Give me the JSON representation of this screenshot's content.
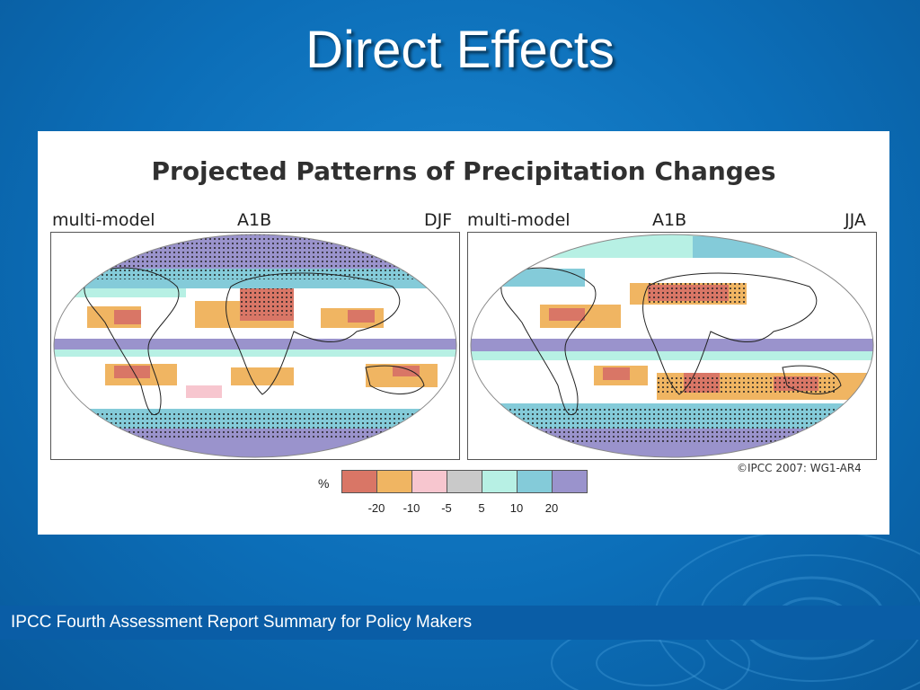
{
  "slide": {
    "title": "Direct Effects",
    "footer": "IPCC Fourth Assessment Report Summary for Policy Makers"
  },
  "figure": {
    "title": "Projected Patterns of Precipitation Changes",
    "copyright": "©IPCC  2007: WG1-AR4",
    "panels": [
      {
        "label_left": "multi-model",
        "label_mid": "A1B",
        "label_right": "DJF"
      },
      {
        "label_left": "multi-model",
        "label_mid": "A1B",
        "label_right": "JJA"
      }
    ],
    "legend": {
      "unit": "%",
      "colors": [
        "#d97666",
        "#f0b562",
        "#f7c6cf",
        "#c9c9c9",
        "#b7f0e4",
        "#84cbd9",
        "#9a93cc"
      ],
      "ticks": [
        "-20",
        "-10",
        "-5",
        "5",
        "10",
        "20"
      ]
    }
  },
  "colors": {
    "background": "#0c6eb8",
    "footer_bar": "#0a5da6"
  }
}
